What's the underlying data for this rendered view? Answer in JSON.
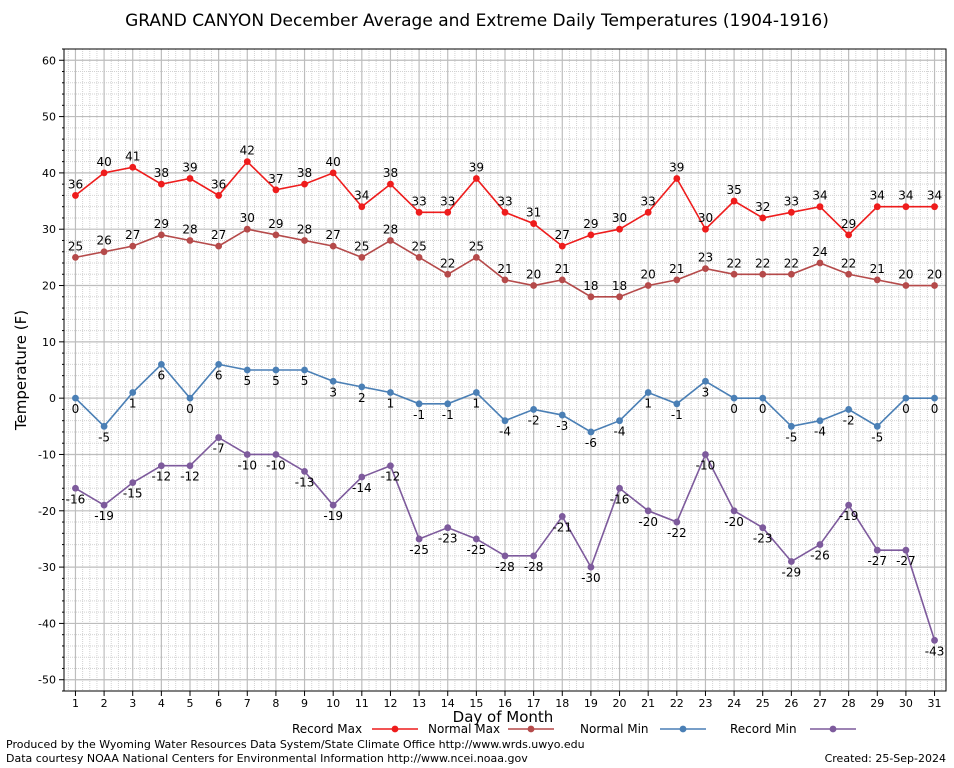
{
  "chart_data": {
    "type": "line",
    "title": "GRAND CANYON December Average and Extreme Daily Temperatures (1904-1916)",
    "xlabel": "Day of Month",
    "ylabel": "Temperature (F)",
    "xlim": [
      0.6,
      31.4
    ],
    "ylim": [
      -52,
      62
    ],
    "y_ticks": [
      60,
      50,
      40,
      30,
      20,
      10,
      0,
      -10,
      -20,
      -30,
      -40,
      -50
    ],
    "x": [
      1,
      2,
      3,
      4,
      5,
      6,
      7,
      8,
      9,
      10,
      11,
      12,
      13,
      14,
      15,
      16,
      17,
      18,
      19,
      20,
      21,
      22,
      23,
      24,
      25,
      26,
      27,
      28,
      29,
      30,
      31
    ],
    "grid": true,
    "legend_position": "bottom",
    "series": [
      {
        "name": "Record Max",
        "color": "#ee1c1c",
        "label_side": "above",
        "values": [
          36,
          40,
          41,
          38,
          39,
          36,
          42,
          37,
          38,
          40,
          34,
          38,
          33,
          33,
          39,
          33,
          31,
          27,
          29,
          30,
          33,
          39,
          30,
          35,
          32,
          33,
          34,
          29,
          34,
          34,
          34
        ]
      },
      {
        "name": "Normal Max",
        "color": "#b54a4a",
        "label_side": "above",
        "values": [
          25,
          26,
          27,
          29,
          28,
          27,
          30,
          29,
          28,
          27,
          25,
          28,
          25,
          22,
          25,
          21,
          20,
          21,
          18,
          18,
          20,
          21,
          23,
          22,
          22,
          22,
          24,
          22,
          21,
          20,
          20
        ]
      },
      {
        "name": "Normal Min",
        "color": "#4a7fb5",
        "label_side": "below",
        "values": [
          0,
          -5,
          1,
          6,
          0,
          6,
          5,
          5,
          5,
          3,
          2,
          1,
          -1,
          -1,
          1,
          -4,
          -2,
          -3,
          -6,
          -4,
          1,
          -1,
          3,
          0,
          0,
          -5,
          -4,
          -2,
          -5,
          0,
          0
        ]
      },
      {
        "name": "Record Min",
        "color": "#7d5a9c",
        "label_side": "below",
        "values": [
          -16,
          -19,
          -15,
          -12,
          -12,
          -7,
          -10,
          -10,
          -13,
          -19,
          -14,
          -12,
          -25,
          -23,
          -25,
          -28,
          -28,
          -21,
          -30,
          -16,
          -20,
          -22,
          -10,
          -20,
          -23,
          -29,
          -26,
          -19,
          -27,
          -27,
          -43
        ]
      }
    ]
  },
  "footer": {
    "produced_by": "Produced by the Wyoming Water Resources Data System/State Climate Office http://www.wrds.uwyo.edu",
    "courtesy": "Data courtesy NOAA National Centers for Environmental Information http://www.ncei.noaa.gov",
    "created": "Created:  25-Sep-2024"
  }
}
